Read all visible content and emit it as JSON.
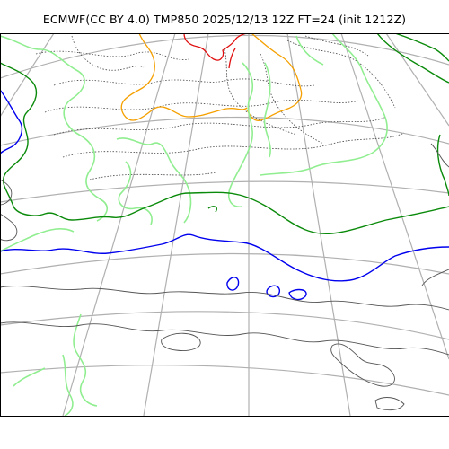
{
  "title": "ECMWF(CC BY 4.0) TMP850 2025/12/13 12Z FT=24 (init 1212Z)",
  "colors": {
    "background": "#ffffff",
    "graticule": "#b0b0b0",
    "coastline": "#555555",
    "isotherm_red": "#e01010",
    "isotherm_orange": "#f5a000",
    "isotherm_lightgreen": "#90ee90",
    "isotherm_darkgreen": "#0a8a0a",
    "isotherm_blue": "#0000ee",
    "isotherm_dotted": "#444444"
  }
}
